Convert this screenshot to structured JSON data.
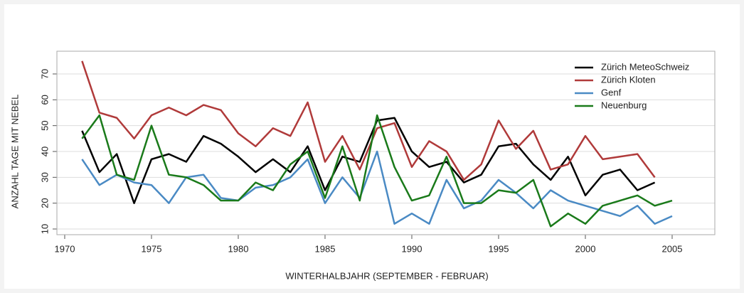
{
  "chart_data": {
    "type": "line",
    "xlabel": "WINTERHALBJAHR (SEPTEMBER - FEBRUAR)",
    "ylabel": "ANZAHL TAGE MIT NEBEL",
    "x": [
      1971,
      1972,
      1973,
      1974,
      1975,
      1976,
      1977,
      1978,
      1979,
      1980,
      1981,
      1982,
      1983,
      1984,
      1985,
      1986,
      1987,
      1988,
      1989,
      1990,
      1991,
      1992,
      1993,
      1994,
      1995,
      1996,
      1997,
      1998,
      1999,
      2000,
      2001,
      2002,
      2003,
      2004,
      2005
    ],
    "series": [
      {
        "name": "Zürich MeteoSchweiz",
        "color": "#000000",
        "values": [
          48,
          32,
          39,
          20,
          37,
          39,
          36,
          46,
          43,
          38,
          32,
          37,
          32,
          42,
          25,
          38,
          36,
          52,
          53,
          40,
          34,
          36,
          28,
          31,
          42,
          43,
          35,
          29,
          38,
          23,
          31,
          33,
          25,
          28,
          null
        ]
      },
      {
        "name": "Zürich Kloten",
        "color": "#b03a3a",
        "values": [
          75,
          55,
          53,
          45,
          54,
          57,
          54,
          58,
          56,
          47,
          42,
          49,
          46,
          59,
          36,
          46,
          33,
          49,
          51,
          34,
          44,
          40,
          29,
          35,
          52,
          41,
          48,
          33,
          35,
          46,
          37,
          38,
          39,
          30,
          null
        ]
      },
      {
        "name": "Genf",
        "color": "#4a8ac4",
        "values": [
          37,
          27,
          31,
          28,
          27,
          20,
          30,
          31,
          22,
          21,
          26,
          27,
          30,
          37,
          20,
          30,
          22,
          40,
          12,
          16,
          12,
          29,
          18,
          21,
          29,
          24,
          18,
          25,
          21,
          19,
          17,
          15,
          19,
          12,
          15
        ]
      },
      {
        "name": "Neuenburg",
        "color": "#1a7a1a",
        "values": [
          45,
          54,
          31,
          29,
          50,
          31,
          30,
          27,
          21,
          21,
          28,
          25,
          35,
          40,
          22,
          42,
          21,
          54,
          34,
          21,
          23,
          38,
          20,
          20,
          25,
          24,
          29,
          11,
          16,
          12,
          19,
          21,
          23,
          19,
          21
        ]
      }
    ],
    "xlim": [
      1969.55,
      2007.46
    ],
    "ylim": [
      7.8,
      78.8
    ],
    "xticks": [
      1970,
      1975,
      1980,
      1985,
      1990,
      1995,
      2000,
      2005
    ],
    "yticks": [
      10,
      20,
      30,
      40,
      50,
      60,
      70
    ],
    "grid": true,
    "legend": "top-right"
  }
}
